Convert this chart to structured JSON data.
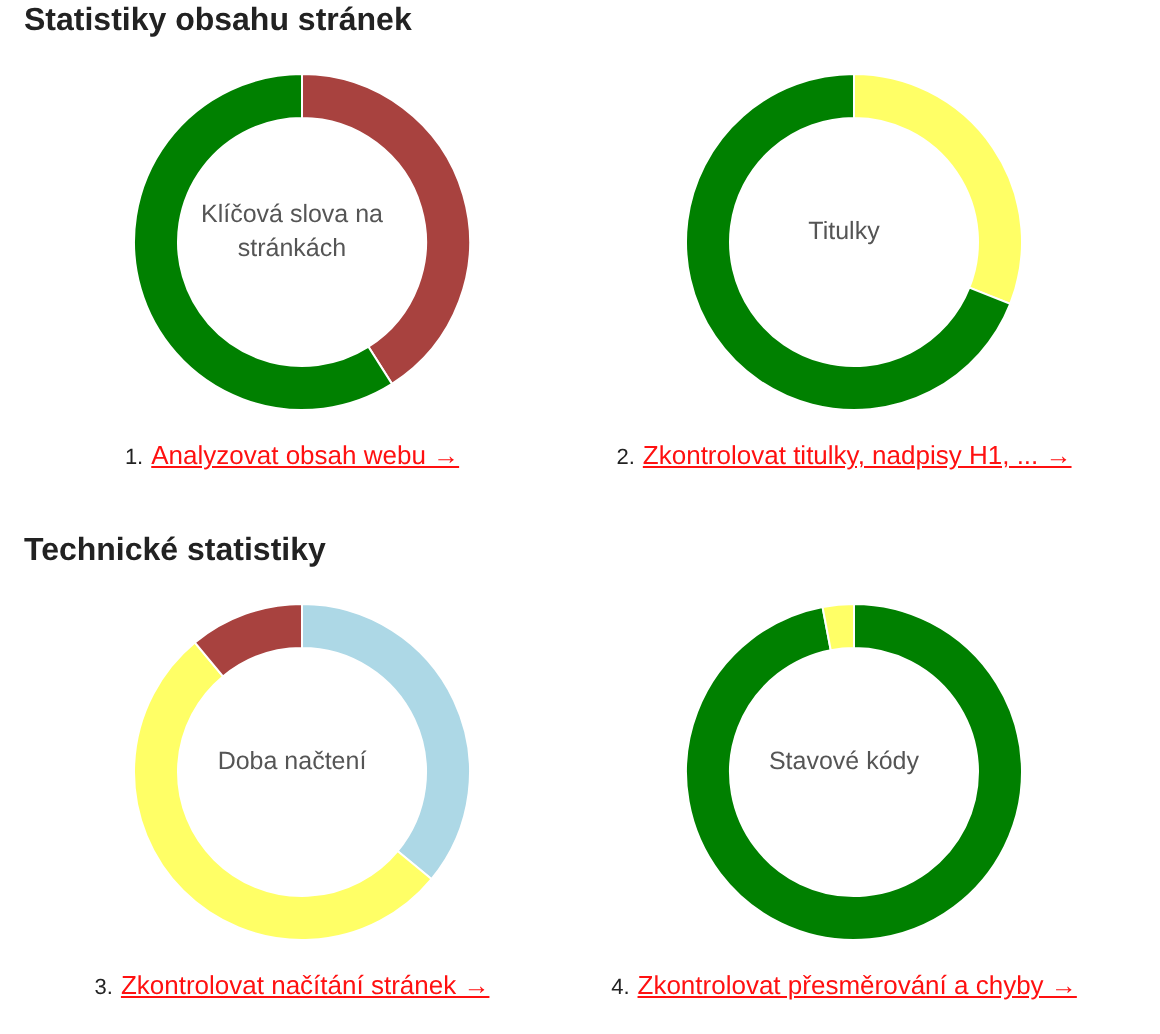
{
  "chart_data": [
    {
      "type": "donut",
      "title": "Statistiky obsahu stránek",
      "categories": [
        null,
        null
      ],
      "values": [
        41,
        59
      ],
      "colors": [
        "#a8423f",
        "#008000"
      ],
      "annotations": [
        "Klíčová slova na stránkách",
        "1.",
        "Analyzovat obsah webu →"
      ]
    },
    {
      "type": "donut",
      "categories": [
        null,
        null
      ],
      "values": [
        31,
        69
      ],
      "colors": [
        "#ffff66",
        "#008000"
      ],
      "annotations": [
        "Titulky",
        "2.",
        "Zkontrolovat titulky, nadpisy H1, ... →"
      ]
    },
    {
      "type": "donut",
      "title": "Technické statistiky",
      "categories": [
        null,
        null,
        null
      ],
      "values": [
        36,
        53,
        11
      ],
      "colors": [
        "#add8e6",
        "#ffff66",
        "#a8423f"
      ],
      "annotations": [
        "Doba načtení",
        "3.",
        "Zkontrolovat načítání stránek →"
      ]
    },
    {
      "type": "donut",
      "categories": [
        null,
        null
      ],
      "values": [
        97,
        3
      ],
      "colors": [
        "#008000",
        "#ffff66"
      ],
      "annotations": [
        "Stavové kódy",
        "4.",
        "Zkontrolovat přesměrování a chyby →"
      ]
    }
  ]
}
